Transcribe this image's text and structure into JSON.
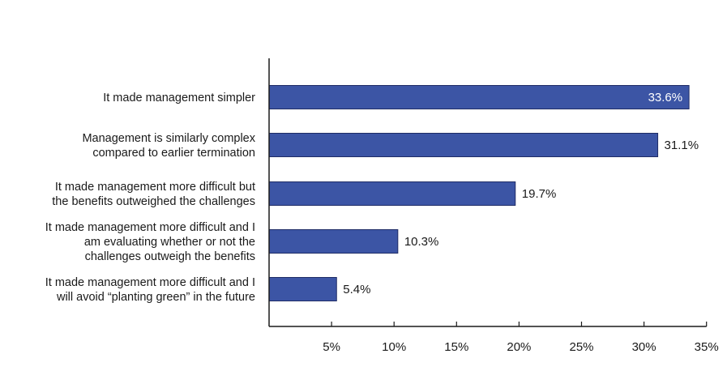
{
  "chart_data": {
    "type": "bar",
    "orientation": "horizontal",
    "categories": [
      [
        "It made management simpler"
      ],
      [
        "Management is similarly complex",
        "compared to earlier termination"
      ],
      [
        "It made management more difficult but",
        "the benefits outweighed the challenges"
      ],
      [
        "It made management more difficult and I",
        "am evaluating whether or not the",
        "challenges outweigh the benefits"
      ],
      [
        "It made management more difficult and I",
        "will avoid “planting green” in the future"
      ]
    ],
    "values": [
      33.6,
      31.1,
      19.7,
      10.3,
      5.4
    ],
    "data_labels": [
      "33.6%",
      "31.1%",
      "19.7%",
      "10.3%",
      "5.4%"
    ],
    "x_ticks": [
      5,
      10,
      15,
      20,
      25,
      30,
      35
    ],
    "x_tick_labels": [
      "5%",
      "10%",
      "15%",
      "20%",
      "25%",
      "30%",
      "35%"
    ],
    "xlim": [
      0,
      35
    ],
    "title": "",
    "xlabel": "",
    "ylabel": "",
    "grid": false,
    "legend": "none",
    "colors": {
      "bar": "#3c55a5",
      "bar_stroke": "#1f2c66",
      "axis": "#1a1a1a",
      "label_inside": "#ffffff",
      "label_outside": "#1a1a1a"
    }
  }
}
